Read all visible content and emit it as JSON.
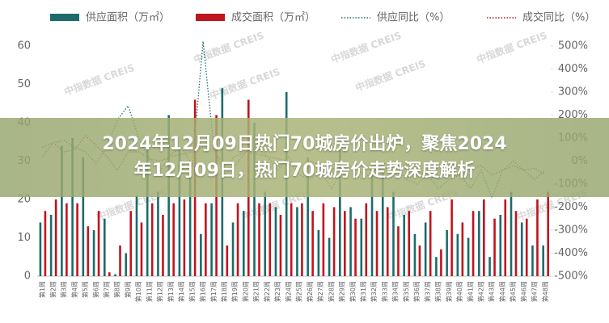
{
  "chart_data": {
    "type": "bar-line",
    "categories": [
      "第1周",
      "第2周",
      "第3周",
      "第4周",
      "第5周",
      "第6周",
      "第7周",
      "第8周",
      "第9周",
      "第10周",
      "第11周",
      "第12周",
      "第13周",
      "第14周",
      "第15周",
      "第16周",
      "第17周",
      "第18周",
      "第19周",
      "第20周",
      "第21周",
      "第22周",
      "第23周",
      "第24周",
      "第25周",
      "第26周",
      "第27周",
      "第28周",
      "第29周",
      "第30周",
      "第31周",
      "第32周",
      "第33周",
      "第34周",
      "第35周",
      "第36周",
      "第37周",
      "第38周",
      "第39周",
      "第40周",
      "第41周",
      "第42周",
      "第43周",
      "第44周",
      "第45周",
      "第46周",
      "第47周",
      "第48周"
    ],
    "series": [
      {
        "name": "供应面积（万㎡）",
        "kind": "bar",
        "color": "#1d6b6b",
        "values": [
          14,
          16,
          34,
          36,
          31,
          12,
          15,
          0.5,
          6,
          21,
          33,
          22,
          42,
          33,
          27,
          11,
          19,
          49,
          14,
          17,
          40,
          22,
          18,
          48,
          18,
          31,
          12,
          10,
          33,
          18,
          15,
          27,
          27,
          22,
          16,
          11,
          14,
          5,
          12,
          11,
          10,
          17,
          5,
          16,
          22,
          14,
          8,
          8
        ]
      },
      {
        "name": "成交面积（万㎡）",
        "kind": "bar",
        "color": "#c0141e",
        "values": [
          17,
          20,
          19,
          19,
          13,
          17,
          1,
          8,
          17,
          14,
          19,
          16,
          19,
          20,
          46,
          19,
          42,
          8,
          19,
          46,
          19,
          19,
          16,
          19,
          19,
          17,
          19,
          18,
          17,
          15,
          19,
          17,
          18,
          13,
          17,
          8,
          17,
          7,
          20,
          14,
          17,
          20,
          15,
          20,
          17,
          15,
          20,
          22
        ]
      },
      {
        "name": "供应同比（%）",
        "kind": "line",
        "axis": "y2",
        "color": "#1d6b6b",
        "values": [
          20,
          80,
          90,
          60,
          40,
          -10,
          60,
          180,
          240,
          100,
          10,
          -40,
          30,
          60,
          -20,
          520,
          60,
          -60,
          -20,
          40,
          60,
          20,
          -40,
          20,
          -60,
          -80,
          -40,
          -120,
          -40,
          -60,
          -80,
          -40,
          -30,
          -20,
          -80,
          -100,
          -60,
          -120,
          -80,
          -60,
          -120,
          -40,
          -160,
          -40,
          0,
          -40,
          -80,
          -40
        ]
      },
      {
        "name": "成交同比（%）",
        "kind": "line",
        "axis": "y2",
        "color": "#c0141e",
        "values": [
          60,
          80,
          40,
          50,
          110,
          70,
          20,
          -40,
          40,
          40,
          10,
          0,
          20,
          30,
          40,
          60,
          50,
          -20,
          20,
          40,
          30,
          20,
          10,
          0,
          -20,
          0,
          -20,
          -40,
          0,
          -30,
          -20,
          -40,
          -10,
          -30,
          -20,
          -60,
          -40,
          -80,
          -20,
          -40,
          -30,
          -20,
          -60,
          -40,
          -20,
          -40,
          -30,
          -60
        ]
      }
    ],
    "ylim": [
      0,
      60
    ],
    "yticks": [
      0,
      10,
      20,
      30,
      40,
      50,
      60
    ],
    "y2lim": [
      -500,
      500
    ],
    "y2ticks": [
      {
        "value": -500,
        "label": "-500%"
      },
      {
        "value": -400,
        "label": "-400%"
      },
      {
        "value": -300,
        "label": "-300%"
      },
      {
        "value": -200,
        "label": "-200%"
      },
      {
        "value": -100,
        "label": "-100%"
      },
      {
        "value": 0,
        "label": "0%"
      },
      {
        "value": 100,
        "label": "100%"
      },
      {
        "value": 200,
        "label": "200%"
      },
      {
        "value": 300,
        "label": "300%"
      },
      {
        "value": 400,
        "label": "400%"
      },
      {
        "value": 500,
        "label": "500%"
      }
    ],
    "watermark": "中指数据 CREIS"
  },
  "banner": {
    "lines": [
      "2024年12月09日热门70城房价出炉，聚焦2024",
      "年12月09日，热门70城房价走势深度解析"
    ]
  }
}
